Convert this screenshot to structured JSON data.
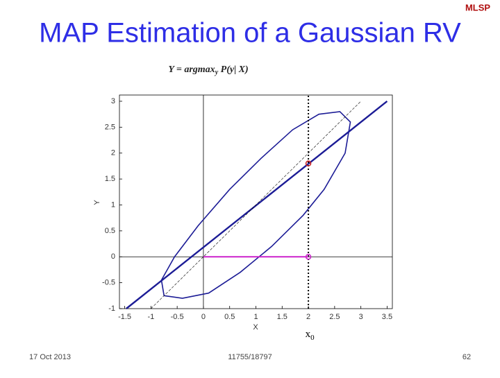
{
  "slide": {
    "title": "MAP Estimation of a Gaussian RV",
    "logo": "MLSP",
    "footer_left": "17 Oct 2013",
    "footer_center": "11755/18797",
    "footer_right": "62"
  },
  "chart_data": {
    "type": "line",
    "subtitle": {
      "text": "Y = argmax",
      "sub": "y",
      "rest": " P(y| X)"
    },
    "x_label": "X",
    "y_label": "Y",
    "annotation": {
      "text": "x",
      "sub": "0",
      "x": 2
    },
    "xlim": [
      -1.6,
      3.6
    ],
    "ylim": [
      -1.0,
      3.12
    ],
    "xticks": [
      -1.5,
      -1,
      -0.5,
      0,
      0.5,
      1,
      1.5,
      2,
      2.5,
      3,
      3.5
    ],
    "yticks": [
      -1,
      -0.5,
      0,
      0.5,
      1,
      1.5,
      2,
      2.5,
      3
    ],
    "zero_lines": true,
    "series": [
      {
        "color": "#1c1c96",
        "dash": "solid",
        "linewidth": 1.6,
        "x": [
          -0.75,
          -0.8,
          -0.55,
          -0.1,
          0.5,
          1.1,
          1.7,
          2.2,
          2.6,
          2.8,
          2.7,
          2.3,
          1.9,
          1.3,
          0.7,
          0.1,
          -0.4,
          -0.75
        ],
        "y": [
          -0.75,
          -0.45,
          0,
          0.6,
          1.3,
          1.9,
          2.45,
          2.75,
          2.8,
          2.6,
          2.0,
          1.3,
          0.8,
          0.2,
          -0.3,
          -0.7,
          -0.8,
          -0.75
        ]
      },
      {
        "color": "#1c1c96",
        "dash": "solid",
        "linewidth": 2.4,
        "x": [
          -1.47,
          3.5
        ],
        "y": [
          -1,
          3
        ]
      },
      {
        "color": "#000000",
        "dash": "dashed",
        "linewidth": 0.6,
        "x": [
          -1,
          3
        ],
        "y": [
          -1,
          3
        ]
      },
      {
        "color": "#000000",
        "dash": "dotted",
        "linewidth": 2,
        "x": [
          2,
          2
        ],
        "y": [
          -1,
          3.12
        ]
      },
      {
        "color": "#cc22cc",
        "dash": "solid",
        "linewidth": 2,
        "x": [
          0,
          2
        ],
        "y": [
          0,
          0
        ]
      }
    ],
    "points": [
      {
        "x": 2,
        "y": 1.8,
        "color": "#cc2222"
      },
      {
        "x": 2,
        "y": 0,
        "color": "#cc22cc"
      }
    ]
  }
}
